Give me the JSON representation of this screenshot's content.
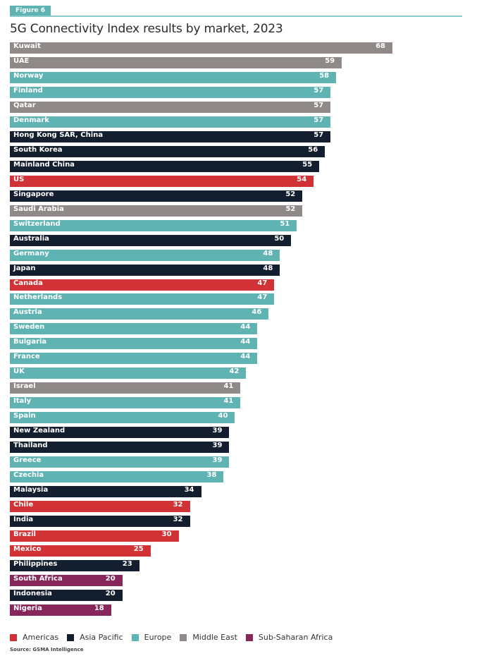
{
  "figure_label": "Figure 6",
  "colors": {
    "Americas": "#d03235",
    "Asia Pacific": "#131e2e",
    "Europe": "#5fb3b3",
    "Middle East": "#8f8a87",
    "Sub-Saharan Africa": "#86265b"
  },
  "chart_data": {
    "type": "bar",
    "orientation": "horizontal",
    "title": "5G Connectivity Index results by market, 2023",
    "xlabel": "",
    "ylabel": "",
    "xlim": [
      0,
      68
    ],
    "grid": false,
    "legend_position": "bottom",
    "categories": [
      "Kuwait",
      "UAE",
      "Norway",
      "Finland",
      "Qatar",
      "Denmark",
      "Hong Kong SAR, China",
      "South Korea",
      "Mainland China",
      "US",
      "Singapore",
      "Saudi Arabia",
      "Switzerland",
      "Australia",
      "Germany",
      "Japan",
      "Canada",
      "Netherlands",
      "Austria",
      "Sweden",
      "Bulgaria",
      "France",
      "UK",
      "Israel",
      "Italy",
      "Spain",
      "New Zealand",
      "Thailand",
      "Greece",
      "Czechia",
      "Malaysia",
      "Chile",
      "India",
      "Brazil",
      "Mexico",
      "Philippines",
      "South Africa",
      "Indonesia",
      "Nigeria"
    ],
    "values": [
      68,
      59,
      58,
      57,
      57,
      57,
      57,
      56,
      55,
      54,
      52,
      52,
      51,
      50,
      48,
      48,
      47,
      47,
      46,
      44,
      44,
      44,
      42,
      41,
      41,
      40,
      39,
      39,
      39,
      38,
      34,
      32,
      32,
      30,
      25,
      23,
      20,
      20,
      18
    ],
    "regions": [
      "Middle East",
      "Middle East",
      "Europe",
      "Europe",
      "Middle East",
      "Europe",
      "Asia Pacific",
      "Asia Pacific",
      "Asia Pacific",
      "Americas",
      "Asia Pacific",
      "Middle East",
      "Europe",
      "Asia Pacific",
      "Europe",
      "Asia Pacific",
      "Americas",
      "Europe",
      "Europe",
      "Europe",
      "Europe",
      "Europe",
      "Europe",
      "Middle East",
      "Europe",
      "Europe",
      "Asia Pacific",
      "Asia Pacific",
      "Europe",
      "Europe",
      "Asia Pacific",
      "Americas",
      "Asia Pacific",
      "Americas",
      "Americas",
      "Asia Pacific",
      "Sub-Saharan Africa",
      "Asia Pacific",
      "Sub-Saharan Africa"
    ],
    "legend": [
      "Americas",
      "Asia Pacific",
      "Europe",
      "Middle East",
      "Sub-Saharan Africa"
    ]
  },
  "source": "Source: GSMA Intelligence"
}
